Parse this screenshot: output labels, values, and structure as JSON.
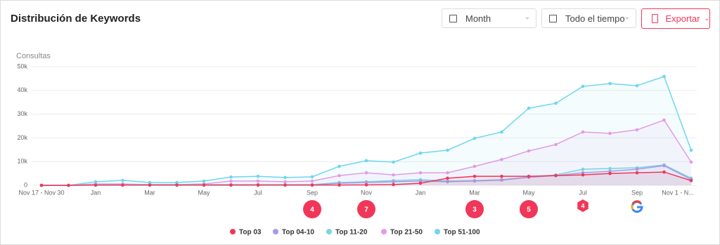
{
  "header": {
    "title": "Distribución de Keywords",
    "period": "Month",
    "range": "Todo el tiempo",
    "export": "Exportar"
  },
  "chart_data": {
    "type": "line",
    "y_label": "Consultas",
    "categories": [
      "Nov 17 - Nov 30",
      null,
      "Jan",
      null,
      "Mar",
      null,
      "May",
      null,
      "Jul",
      null,
      "Sep",
      null,
      "Nov",
      null,
      "Jan",
      null,
      "Mar",
      null,
      "May",
      null,
      "Jul",
      null,
      "Sep",
      null,
      "Nov 1 - N..."
    ],
    "ylim": [
      0,
      50000
    ],
    "yticks": [
      {
        "value": 0,
        "label": "0"
      },
      {
        "value": 10000,
        "label": "10k"
      },
      {
        "value": 20000,
        "label": "20k"
      },
      {
        "value": 30000,
        "label": "30k"
      },
      {
        "value": 40000,
        "label": "40k"
      },
      {
        "value": 50000,
        "label": "50k"
      }
    ],
    "grid": true,
    "area_fill": true,
    "series": [
      {
        "name": "Top 03",
        "color": "#f0375a",
        "values": [
          0,
          0,
          100,
          100,
          100,
          100,
          100,
          100,
          100,
          100,
          100,
          100,
          200,
          300,
          900,
          3000,
          3800,
          3800,
          3800,
          4100,
          4400,
          5000,
          5300,
          5600,
          2000
        ]
      },
      {
        "name": "Top 04-10",
        "color": "#a89be6",
        "values": [
          0,
          0,
          100,
          100,
          100,
          100,
          100,
          100,
          100,
          100,
          100,
          900,
          1200,
          1500,
          1800,
          1500,
          1800,
          2200,
          3400,
          4100,
          5300,
          5900,
          6800,
          8300,
          2500
        ]
      },
      {
        "name": "Top 11-20",
        "color": "#7fd3dd",
        "values": [
          0,
          0,
          300,
          300,
          300,
          300,
          300,
          300,
          300,
          300,
          300,
          1200,
          1500,
          2000,
          2400,
          1800,
          2000,
          2400,
          3500,
          4400,
          6800,
          7100,
          7400,
          8600,
          3000
        ]
      },
      {
        "name": "Top 21-50",
        "color": "#e39be6",
        "values": [
          0,
          0,
          600,
          600,
          300,
          300,
          600,
          1800,
          1800,
          1500,
          1800,
          4100,
          5300,
          4400,
          5300,
          5300,
          8000,
          10900,
          14500,
          17200,
          22500,
          21900,
          23400,
          27500,
          9800
        ]
      },
      {
        "name": "Top 51-100",
        "color": "#6fd6ee",
        "values": [
          0,
          0,
          1500,
          2100,
          1200,
          1200,
          1800,
          3500,
          3800,
          3300,
          3600,
          8000,
          10400,
          9800,
          13600,
          14800,
          19800,
          22500,
          32500,
          34600,
          41700,
          42900,
          42000,
          45900,
          14800
        ]
      }
    ],
    "annotations": [
      null,
      null,
      null,
      null,
      null,
      null,
      null,
      null,
      null,
      null,
      "4",
      null,
      "7",
      null,
      null,
      null,
      "3",
      null,
      "5",
      null,
      "4",
      null,
      null,
      null,
      null
    ],
    "annotation_shapes": [
      null,
      null,
      null,
      null,
      null,
      null,
      null,
      null,
      null,
      null,
      "circle",
      null,
      "circle",
      null,
      null,
      null,
      "circle",
      null,
      "circle",
      null,
      "hexagon",
      null,
      null,
      null,
      null
    ]
  }
}
